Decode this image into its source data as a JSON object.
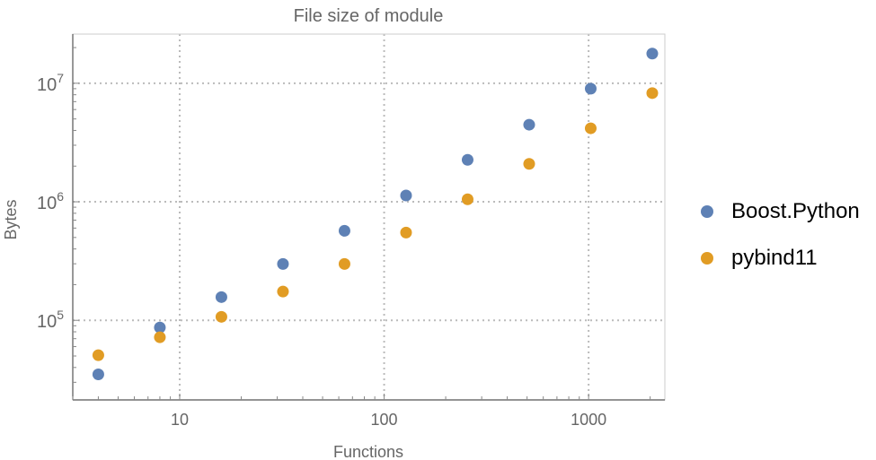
{
  "chart_data": {
    "type": "scatter",
    "title": "File size of module",
    "xlabel": "Functions",
    "ylabel": "Bytes",
    "xscale": "log",
    "yscale": "log",
    "xlim": [
      3.0,
      2360
    ],
    "ylim": [
      21300,
      26000000
    ],
    "grid": true,
    "legend_position": "right",
    "x_ticks": [
      {
        "value": 10,
        "label": "10"
      },
      {
        "value": 100,
        "label": "100"
      },
      {
        "value": 1000,
        "label": "1000"
      }
    ],
    "y_ticks": [
      {
        "value": 100000,
        "base": "10",
        "exp": "5"
      },
      {
        "value": 1000000,
        "base": "10",
        "exp": "6"
      },
      {
        "value": 10000000,
        "base": "10",
        "exp": "7"
      }
    ],
    "x": [
      4,
      8,
      16,
      32,
      64,
      128,
      256,
      512,
      1024,
      2048
    ],
    "series": [
      {
        "name": "Boost.Python",
        "color": "#5e81b5",
        "values": [
          35000,
          87000,
          157000,
          299000,
          569000,
          1130000,
          2260000,
          4470000,
          9000000,
          17800000
        ]
      },
      {
        "name": "pybind11",
        "color": "#e19c24",
        "values": [
          50800,
          72000,
          107000,
          175000,
          299000,
          550000,
          1050000,
          2090000,
          4170000,
          8260000
        ]
      }
    ]
  }
}
